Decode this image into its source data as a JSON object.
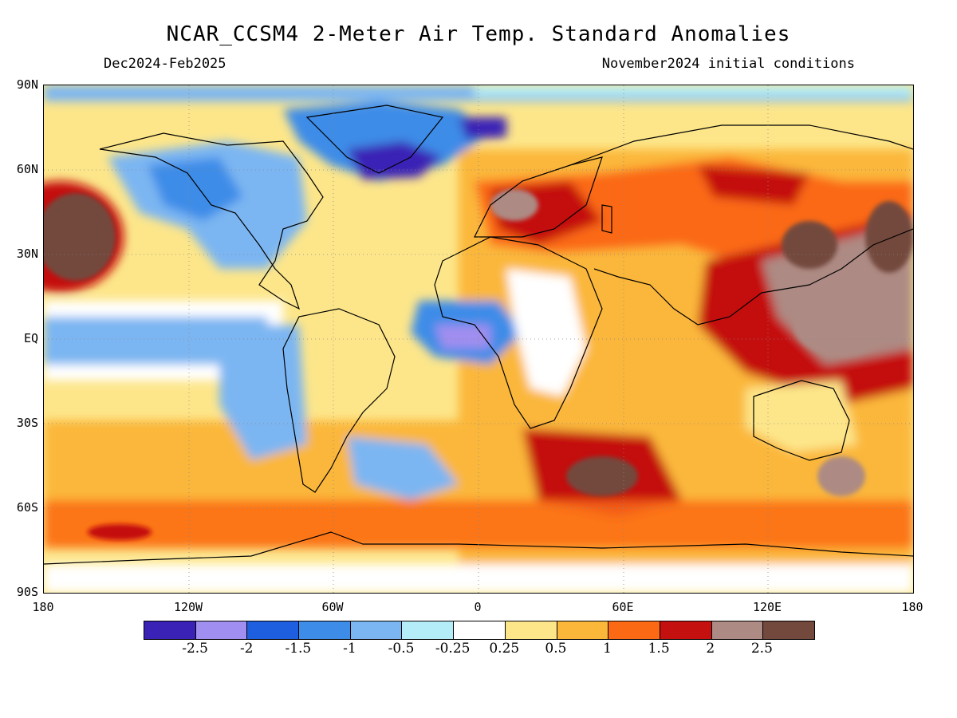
{
  "title": "NCAR_CCSM4 2-Meter Air Temp. Standard Anomalies",
  "subtitle_left": "Dec2024-Feb2025",
  "subtitle_right": "November2024 initial conditions",
  "lat_labels": [
    "90N",
    "60N",
    "30N",
    "EQ",
    "30S",
    "60S",
    "90S"
  ],
  "lon_labels": [
    "180",
    "120W",
    "60W",
    "0",
    "60E",
    "120E",
    "180"
  ],
  "colorbar": {
    "labels": [
      "-2.5",
      "-2",
      "-1.5",
      "-1",
      "-0.5",
      "-0.25",
      "0.25",
      "0.5",
      "1",
      "1.5",
      "2",
      "2.5"
    ],
    "colors": [
      "#3a22b6",
      "#a08ef0",
      "#1e5fe0",
      "#3d8ce8",
      "#7bb6f2",
      "#b4ecf7",
      "#ffffff",
      "#fde68a",
      "#fbb73a",
      "#fb6914",
      "#c4100f",
      "#ad8a83",
      "#73493e"
    ]
  },
  "regions": [
    {
      "name": "Arctic ocean band",
      "anomaly": -0.75
    },
    {
      "name": "Greenland",
      "anomaly": -2.0
    },
    {
      "name": "Canada and Alaska",
      "anomaly": -1.0
    },
    {
      "name": "Hudson Bay region",
      "anomaly": -2.75
    },
    {
      "name": "Siberia and Russia",
      "anomaly": 1.75
    },
    {
      "name": "Europe",
      "anomaly": 2.25
    },
    {
      "name": "Caspian Sea",
      "anomaly": -1.0
    },
    {
      "name": "North Africa",
      "anomaly": 1.25
    },
    {
      "name": "Central and East Africa",
      "anomaly": 0.2
    },
    {
      "name": "Gulf of Guinea",
      "anomaly": -2.25
    },
    {
      "name": "Tropical East Pacific",
      "anomaly": -1.25
    },
    {
      "name": "Northeast Pacific",
      "anomaly": -1.0
    },
    {
      "name": "Northwest Pacific",
      "anomaly": 2.75
    },
    {
      "name": "Central North Pacific near dateline",
      "anomaly": 2.75
    },
    {
      "name": "Southeast Asia and Maritime Continent",
      "anomaly": 2.5
    },
    {
      "name": "Australia",
      "anomaly": 0.75
    },
    {
      "name": "South Indian Ocean",
      "anomaly": 2.75
    },
    {
      "name": "South America",
      "anomaly": 1.25
    },
    {
      "name": "South Atlantic",
      "anomaly": -0.75
    },
    {
      "name": "Southern Ocean",
      "anomaly": 1.75
    },
    {
      "name": "Antarctica",
      "anomaly": 0.25
    }
  ]
}
